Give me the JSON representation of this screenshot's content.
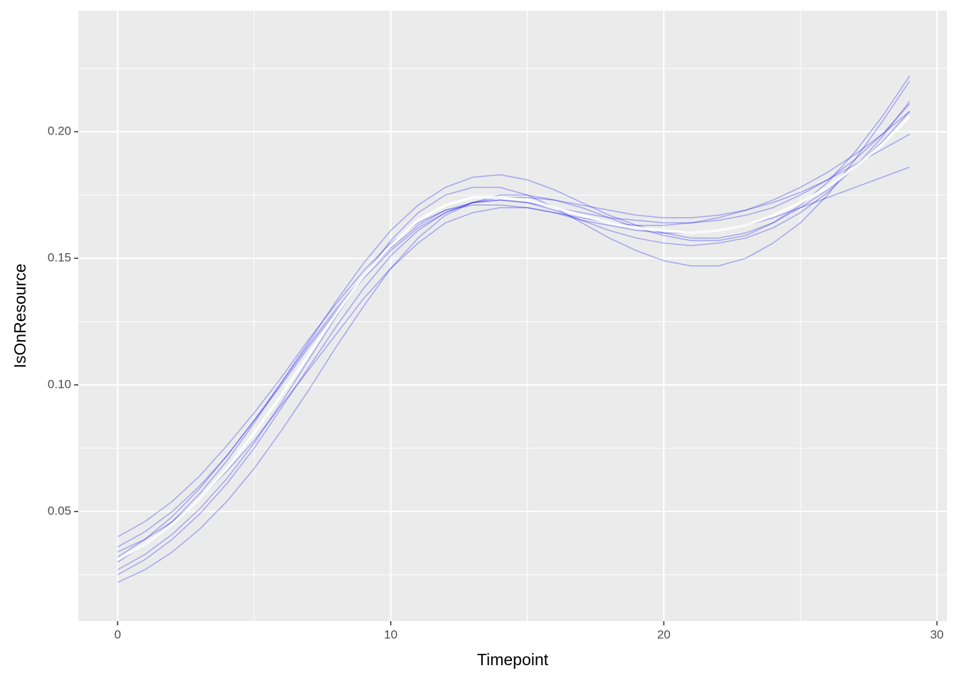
{
  "chart_data": {
    "type": "line",
    "x_label": "Timepoint",
    "y_label": "IsOnResource",
    "x": [
      0,
      1,
      2,
      3,
      4,
      5,
      6,
      7,
      8,
      9,
      10,
      11,
      12,
      13,
      14,
      15,
      16,
      17,
      18,
      19,
      20,
      21,
      22,
      23,
      24,
      25,
      26,
      27,
      28,
      29
    ],
    "series": [
      {
        "color": "#0000ff",
        "opacity": 0.3,
        "width": 1.5,
        "values": [
          0.04,
          0.046,
          0.054,
          0.064,
          0.076,
          0.089,
          0.103,
          0.118,
          0.132,
          0.145,
          0.156,
          0.164,
          0.169,
          0.171,
          0.171,
          0.17,
          0.168,
          0.165,
          0.163,
          0.161,
          0.16,
          0.16,
          0.161,
          0.163,
          0.166,
          0.17,
          0.174,
          0.178,
          0.182,
          0.186
        ]
      },
      {
        "color": "#0000ff",
        "opacity": 0.3,
        "width": 1.5,
        "values": [
          0.022,
          0.027,
          0.034,
          0.043,
          0.054,
          0.067,
          0.082,
          0.098,
          0.115,
          0.131,
          0.146,
          0.158,
          0.167,
          0.172,
          0.175,
          0.175,
          0.173,
          0.17,
          0.166,
          0.162,
          0.159,
          0.157,
          0.157,
          0.159,
          0.164,
          0.171,
          0.18,
          0.192,
          0.206,
          0.222
        ]
      },
      {
        "color": "#0000ff",
        "opacity": 0.3,
        "width": 1.5,
        "values": [
          0.03,
          0.037,
          0.046,
          0.057,
          0.07,
          0.085,
          0.101,
          0.117,
          0.133,
          0.148,
          0.161,
          0.171,
          0.178,
          0.182,
          0.183,
          0.181,
          0.177,
          0.172,
          0.167,
          0.163,
          0.16,
          0.158,
          0.158,
          0.16,
          0.164,
          0.17,
          0.177,
          0.186,
          0.196,
          0.208
        ]
      },
      {
        "color": "#0000ff",
        "opacity": 0.3,
        "width": 1.5,
        "values": [
          0.034,
          0.039,
          0.046,
          0.055,
          0.066,
          0.078,
          0.092,
          0.106,
          0.12,
          0.134,
          0.146,
          0.156,
          0.164,
          0.168,
          0.17,
          0.17,
          0.168,
          0.166,
          0.164,
          0.163,
          0.163,
          0.164,
          0.166,
          0.169,
          0.173,
          0.178,
          0.184,
          0.191,
          0.199,
          0.208
        ]
      },
      {
        "color": "#0000ff",
        "opacity": 0.3,
        "width": 1.5,
        "values": [
          0.027,
          0.033,
          0.041,
          0.051,
          0.063,
          0.077,
          0.093,
          0.11,
          0.127,
          0.143,
          0.157,
          0.168,
          0.175,
          0.178,
          0.178,
          0.175,
          0.17,
          0.164,
          0.158,
          0.153,
          0.149,
          0.147,
          0.147,
          0.15,
          0.156,
          0.164,
          0.175,
          0.189,
          0.204,
          0.22
        ]
      },
      {
        "color": "#0000ff",
        "opacity": 0.3,
        "width": 1.5,
        "values": [
          0.036,
          0.042,
          0.05,
          0.06,
          0.072,
          0.086,
          0.1,
          0.115,
          0.129,
          0.142,
          0.153,
          0.162,
          0.168,
          0.172,
          0.174,
          0.174,
          0.173,
          0.171,
          0.169,
          0.167,
          0.166,
          0.166,
          0.167,
          0.169,
          0.172,
          0.176,
          0.181,
          0.187,
          0.193,
          0.199
        ]
      },
      {
        "color": "#0000ff",
        "opacity": 0.3,
        "width": 1.5,
        "values": [
          0.025,
          0.031,
          0.039,
          0.049,
          0.061,
          0.075,
          0.091,
          0.107,
          0.123,
          0.138,
          0.151,
          0.161,
          0.168,
          0.172,
          0.173,
          0.172,
          0.169,
          0.165,
          0.161,
          0.158,
          0.156,
          0.155,
          0.156,
          0.158,
          0.162,
          0.168,
          0.176,
          0.186,
          0.198,
          0.212
        ]
      },
      {
        "color": "#0000ff",
        "opacity": 0.3,
        "width": 1.5,
        "values": [
          0.032,
          0.039,
          0.048,
          0.059,
          0.072,
          0.086,
          0.101,
          0.116,
          0.13,
          0.143,
          0.154,
          0.163,
          0.169,
          0.172,
          0.173,
          0.172,
          0.17,
          0.168,
          0.166,
          0.165,
          0.164,
          0.164,
          0.165,
          0.167,
          0.17,
          0.175,
          0.181,
          0.189,
          0.199,
          0.211
        ]
      },
      {
        "color": "#ffffff",
        "opacity": 0.9,
        "width": 3.5,
        "values": [
          0.031,
          0.037,
          0.045,
          0.055,
          0.067,
          0.081,
          0.096,
          0.112,
          0.128,
          0.143,
          0.155,
          0.165,
          0.171,
          0.174,
          0.174,
          0.173,
          0.17,
          0.167,
          0.164,
          0.162,
          0.161,
          0.16,
          0.161,
          0.163,
          0.167,
          0.172,
          0.178,
          0.186,
          0.195,
          0.206
        ]
      }
    ],
    "xlim": [
      -1.44,
      30.37
    ],
    "xticks": [
      0,
      10,
      20,
      30
    ],
    "ylim": [
      0.0067,
      0.2478
    ],
    "yticks": [
      0.05,
      {
        "value": 0.1,
        "label": "0.10"
      },
      0.15,
      {
        "value": 0.2,
        "label": "0.20"
      }
    ],
    "grid": true,
    "minor_grid": true,
    "panel_color": "#ebebeb"
  }
}
